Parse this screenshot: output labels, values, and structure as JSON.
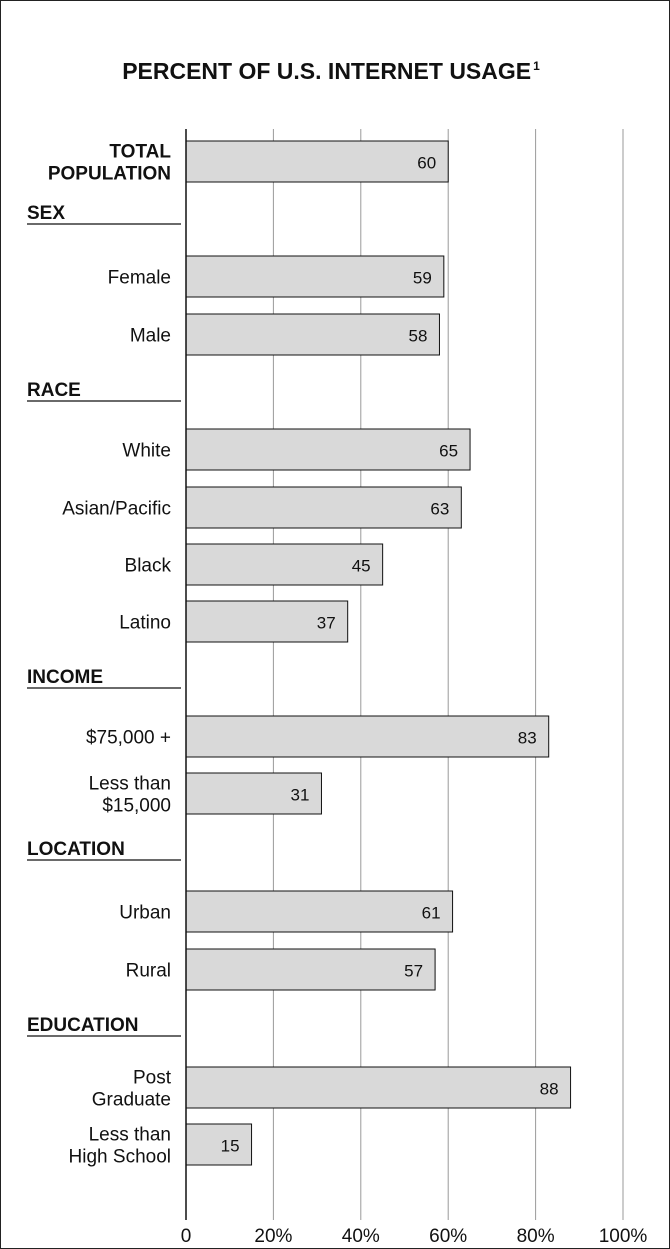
{
  "chart_data": {
    "type": "bar",
    "orientation": "horizontal",
    "title": "PERCENT OF U.S. INTERNET USAGE",
    "title_superscript": "1",
    "xlim": [
      0,
      100
    ],
    "x_ticks": [
      "0",
      "20%",
      "40%",
      "60%",
      "80%",
      "100%"
    ],
    "grid": "vertical",
    "bar_color": "#d9d9d9",
    "rows": [
      {
        "kind": "bar",
        "label": [
          "TOTAL",
          "POPULATION"
        ],
        "bold": true,
        "value": 60
      },
      {
        "kind": "group",
        "label": "SEX"
      },
      {
        "kind": "bar",
        "label": [
          "Female"
        ],
        "value": 59
      },
      {
        "kind": "bar",
        "label": [
          "Male"
        ],
        "value": 58
      },
      {
        "kind": "group",
        "label": "RACE"
      },
      {
        "kind": "bar",
        "label": [
          "White"
        ],
        "value": 65
      },
      {
        "kind": "bar",
        "label": [
          "Asian/Pacific"
        ],
        "value": 63
      },
      {
        "kind": "bar",
        "label": [
          "Black"
        ],
        "value": 45
      },
      {
        "kind": "bar",
        "label": [
          "Latino"
        ],
        "value": 37
      },
      {
        "kind": "group",
        "label": "INCOME"
      },
      {
        "kind": "bar",
        "label": [
          "$75,000 +"
        ],
        "value": 83
      },
      {
        "kind": "bar",
        "label": [
          "Less than",
          "$15,000"
        ],
        "value": 31
      },
      {
        "kind": "group",
        "label": "LOCATION"
      },
      {
        "kind": "bar",
        "label": [
          "Urban"
        ],
        "value": 61
      },
      {
        "kind": "bar",
        "label": [
          "Rural"
        ],
        "value": 57
      },
      {
        "kind": "group",
        "label": "EDUCATION"
      },
      {
        "kind": "bar",
        "label": [
          "Post",
          "Graduate"
        ],
        "value": 88
      },
      {
        "kind": "bar",
        "label": [
          "Less than",
          "High School"
        ],
        "value": 15
      }
    ]
  }
}
